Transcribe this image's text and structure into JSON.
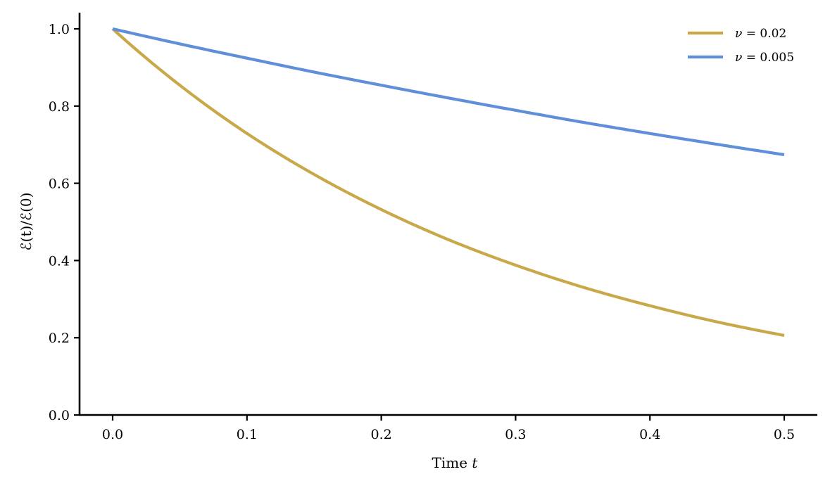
{
  "chart_data": {
    "type": "line",
    "title": "",
    "xlabel": "Time t",
    "ylabel": "E(t)/E(0)",
    "xlim": [
      -0.025,
      0.525
    ],
    "ylim": [
      0.0,
      1.04
    ],
    "xticks": [
      0.0,
      0.1,
      0.2,
      0.3,
      0.4,
      0.5
    ],
    "xtick_labels": [
      "0.0",
      "0.1",
      "0.2",
      "0.3",
      "0.4",
      "0.5"
    ],
    "yticks": [
      0.0,
      0.2,
      0.4,
      0.6,
      0.8,
      1.0
    ],
    "ytick_labels": [
      "0.0",
      "0.2",
      "0.4",
      "0.6",
      "0.8",
      "1.0"
    ],
    "grid": false,
    "legend_position": "upper right",
    "x": [
      0.0,
      0.05,
      0.1,
      0.15,
      0.2,
      0.25,
      0.3,
      0.35,
      0.4,
      0.45,
      0.5
    ],
    "series": [
      {
        "name": "ν = 0.02",
        "color": "#C9A84A",
        "values": [
          1.0,
          0.854,
          0.729,
          0.623,
          0.532,
          0.454,
          0.388,
          0.331,
          0.283,
          0.241,
          0.206
        ]
      },
      {
        "name": "ν = 0.005",
        "color": "#5E8FD8",
        "values": [
          1.0,
          0.961,
          0.924,
          0.888,
          0.854,
          0.821,
          0.789,
          0.758,
          0.729,
          0.701,
          0.674
        ]
      }
    ]
  },
  "legend": {
    "items": [
      {
        "label_var": "ν",
        "label_rest": " = 0.02"
      },
      {
        "label_var": "ν",
        "label_rest": " = 0.005"
      }
    ]
  },
  "axes": {
    "xlabel_text": "Time ",
    "xlabel_var": "t",
    "ylabel_text": "ℰ(t)/ℰ(0)"
  }
}
